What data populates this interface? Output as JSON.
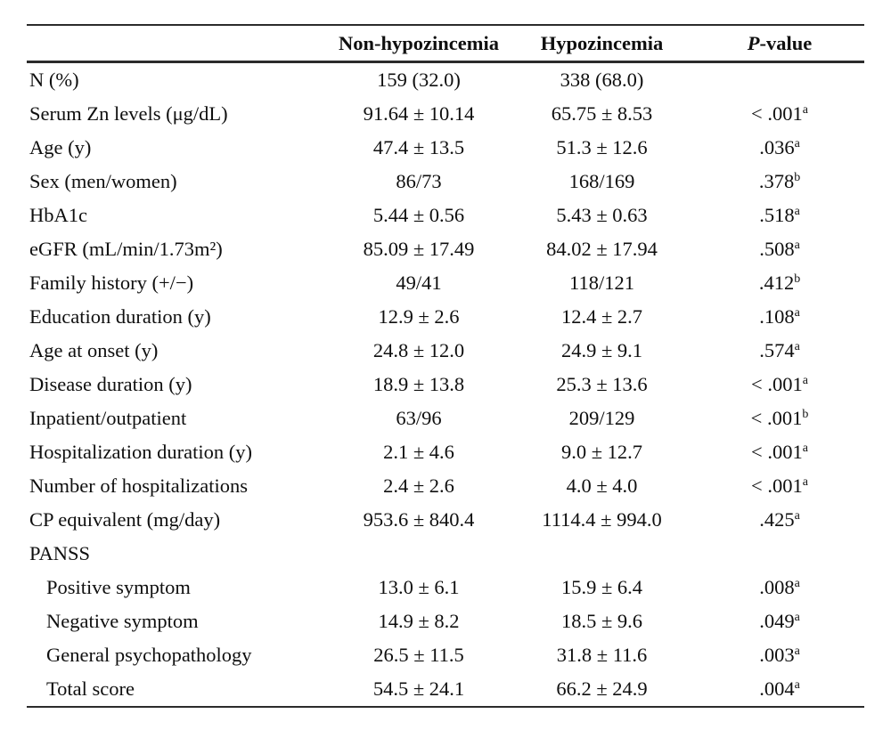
{
  "page": {
    "background": "#ffffff",
    "text_color": "#0f0f0f",
    "rule_color": "#2b2b2b"
  },
  "table": {
    "header": {
      "col1": "",
      "col2": "Non-hypozincemia",
      "col3": "Hypozincemia",
      "p_italic": "P",
      "p_rest": "-value"
    },
    "rows": [
      {
        "label": "N (%)",
        "indent": false,
        "v1": "159 (32.0)",
        "v2": "338 (68.0)",
        "p": "",
        "p_sup": ""
      },
      {
        "label": "Serum Zn levels (μg/dL)",
        "indent": false,
        "v1": "91.64 ± 10.14",
        "v2": "65.75 ± 8.53",
        "p": "< .001",
        "p_sup": "a"
      },
      {
        "label": "Age (y)",
        "indent": false,
        "v1": "47.4 ± 13.5",
        "v2": "51.3 ± 12.6",
        "p": ".036",
        "p_sup": "a"
      },
      {
        "label": "Sex (men/women)",
        "indent": false,
        "v1": "86/73",
        "v2": "168/169",
        "p": ".378",
        "p_sup": "b"
      },
      {
        "label": "HbA1c",
        "indent": false,
        "v1": "5.44 ± 0.56",
        "v2": "5.43 ± 0.63",
        "p": ".518",
        "p_sup": "a"
      },
      {
        "label": "eGFR (mL/min/1.73m²)",
        "indent": false,
        "v1": "85.09 ± 17.49",
        "v2": "84.02 ± 17.94",
        "p": ".508",
        "p_sup": "a"
      },
      {
        "label": "Family history (+/−)",
        "indent": false,
        "v1": "49/41",
        "v2": "118/121",
        "p": ".412",
        "p_sup": "b"
      },
      {
        "label": "Education duration (y)",
        "indent": false,
        "v1": "12.9 ± 2.6",
        "v2": "12.4 ± 2.7",
        "p": ".108",
        "p_sup": "a"
      },
      {
        "label": "Age at onset (y)",
        "indent": false,
        "v1": "24.8 ± 12.0",
        "v2": "24.9 ± 9.1",
        "p": ".574",
        "p_sup": "a"
      },
      {
        "label": "Disease duration (y)",
        "indent": false,
        "v1": "18.9 ± 13.8",
        "v2": "25.3 ± 13.6",
        "p": "< .001",
        "p_sup": "a"
      },
      {
        "label": "Inpatient/outpatient",
        "indent": false,
        "v1": "63/96",
        "v2": "209/129",
        "p": "< .001",
        "p_sup": "b"
      },
      {
        "label": "Hospitalization duration (y)",
        "indent": false,
        "v1": "2.1 ± 4.6",
        "v2": "9.0 ± 12.7",
        "p": "< .001",
        "p_sup": "a"
      },
      {
        "label": "Number of hospitalizations",
        "indent": false,
        "v1": "2.4 ± 2.6",
        "v2": "4.0 ± 4.0",
        "p": "< .001",
        "p_sup": "a"
      },
      {
        "label": "CP equivalent (mg/day)",
        "indent": false,
        "v1": "953.6 ± 840.4",
        "v2": "1114.4 ± 994.0",
        "p": ".425",
        "p_sup": "a"
      },
      {
        "label": "PANSS",
        "indent": false,
        "v1": "",
        "v2": "",
        "p": "",
        "p_sup": ""
      },
      {
        "label": "Positive symptom",
        "indent": true,
        "v1": "13.0 ± 6.1",
        "v2": "15.9 ± 6.4",
        "p": ".008",
        "p_sup": "a"
      },
      {
        "label": "Negative symptom",
        "indent": true,
        "v1": "14.9 ± 8.2",
        "v2": "18.5 ± 9.6",
        "p": ".049",
        "p_sup": "a"
      },
      {
        "label": "General psychopathology",
        "indent": true,
        "v1": "26.5 ± 11.5",
        "v2": "31.8 ± 11.6",
        "p": ".003",
        "p_sup": "a"
      },
      {
        "label": "Total score",
        "indent": true,
        "v1": "54.5 ± 24.1",
        "v2": "66.2 ± 24.9",
        "p": ".004",
        "p_sup": "a"
      }
    ]
  }
}
